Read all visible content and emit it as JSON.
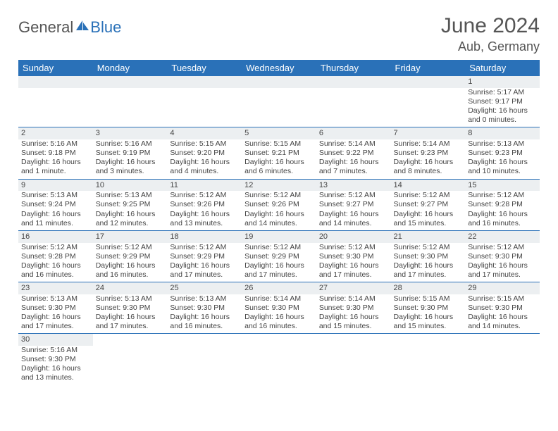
{
  "logo": {
    "part1": "General",
    "part2": "Blue"
  },
  "title": "June 2024",
  "location": "Aub, Germany",
  "headers": [
    "Sunday",
    "Monday",
    "Tuesday",
    "Wednesday",
    "Thursday",
    "Friday",
    "Saturday"
  ],
  "colors": {
    "brand": "#2a71b8",
    "header_text": "#ffffff",
    "grey_bg": "#eceff1",
    "text": "#444444"
  },
  "weeks": [
    [
      null,
      null,
      null,
      null,
      null,
      null,
      {
        "n": "1",
        "sr": "Sunrise: 5:17 AM",
        "ss": "Sunset: 9:17 PM",
        "d1": "Daylight: 16 hours",
        "d2": "and 0 minutes."
      }
    ],
    [
      {
        "n": "2",
        "sr": "Sunrise: 5:16 AM",
        "ss": "Sunset: 9:18 PM",
        "d1": "Daylight: 16 hours",
        "d2": "and 1 minute."
      },
      {
        "n": "3",
        "sr": "Sunrise: 5:16 AM",
        "ss": "Sunset: 9:19 PM",
        "d1": "Daylight: 16 hours",
        "d2": "and 3 minutes."
      },
      {
        "n": "4",
        "sr": "Sunrise: 5:15 AM",
        "ss": "Sunset: 9:20 PM",
        "d1": "Daylight: 16 hours",
        "d2": "and 4 minutes."
      },
      {
        "n": "5",
        "sr": "Sunrise: 5:15 AM",
        "ss": "Sunset: 9:21 PM",
        "d1": "Daylight: 16 hours",
        "d2": "and 6 minutes."
      },
      {
        "n": "6",
        "sr": "Sunrise: 5:14 AM",
        "ss": "Sunset: 9:22 PM",
        "d1": "Daylight: 16 hours",
        "d2": "and 7 minutes."
      },
      {
        "n": "7",
        "sr": "Sunrise: 5:14 AM",
        "ss": "Sunset: 9:23 PM",
        "d1": "Daylight: 16 hours",
        "d2": "and 8 minutes."
      },
      {
        "n": "8",
        "sr": "Sunrise: 5:13 AM",
        "ss": "Sunset: 9:23 PM",
        "d1": "Daylight: 16 hours",
        "d2": "and 10 minutes."
      }
    ],
    [
      {
        "n": "9",
        "sr": "Sunrise: 5:13 AM",
        "ss": "Sunset: 9:24 PM",
        "d1": "Daylight: 16 hours",
        "d2": "and 11 minutes."
      },
      {
        "n": "10",
        "sr": "Sunrise: 5:13 AM",
        "ss": "Sunset: 9:25 PM",
        "d1": "Daylight: 16 hours",
        "d2": "and 12 minutes."
      },
      {
        "n": "11",
        "sr": "Sunrise: 5:12 AM",
        "ss": "Sunset: 9:26 PM",
        "d1": "Daylight: 16 hours",
        "d2": "and 13 minutes."
      },
      {
        "n": "12",
        "sr": "Sunrise: 5:12 AM",
        "ss": "Sunset: 9:26 PM",
        "d1": "Daylight: 16 hours",
        "d2": "and 14 minutes."
      },
      {
        "n": "13",
        "sr": "Sunrise: 5:12 AM",
        "ss": "Sunset: 9:27 PM",
        "d1": "Daylight: 16 hours",
        "d2": "and 14 minutes."
      },
      {
        "n": "14",
        "sr": "Sunrise: 5:12 AM",
        "ss": "Sunset: 9:27 PM",
        "d1": "Daylight: 16 hours",
        "d2": "and 15 minutes."
      },
      {
        "n": "15",
        "sr": "Sunrise: 5:12 AM",
        "ss": "Sunset: 9:28 PM",
        "d1": "Daylight: 16 hours",
        "d2": "and 16 minutes."
      }
    ],
    [
      {
        "n": "16",
        "sr": "Sunrise: 5:12 AM",
        "ss": "Sunset: 9:28 PM",
        "d1": "Daylight: 16 hours",
        "d2": "and 16 minutes."
      },
      {
        "n": "17",
        "sr": "Sunrise: 5:12 AM",
        "ss": "Sunset: 9:29 PM",
        "d1": "Daylight: 16 hours",
        "d2": "and 16 minutes."
      },
      {
        "n": "18",
        "sr": "Sunrise: 5:12 AM",
        "ss": "Sunset: 9:29 PM",
        "d1": "Daylight: 16 hours",
        "d2": "and 17 minutes."
      },
      {
        "n": "19",
        "sr": "Sunrise: 5:12 AM",
        "ss": "Sunset: 9:29 PM",
        "d1": "Daylight: 16 hours",
        "d2": "and 17 minutes."
      },
      {
        "n": "20",
        "sr": "Sunrise: 5:12 AM",
        "ss": "Sunset: 9:30 PM",
        "d1": "Daylight: 16 hours",
        "d2": "and 17 minutes."
      },
      {
        "n": "21",
        "sr": "Sunrise: 5:12 AM",
        "ss": "Sunset: 9:30 PM",
        "d1": "Daylight: 16 hours",
        "d2": "and 17 minutes."
      },
      {
        "n": "22",
        "sr": "Sunrise: 5:12 AM",
        "ss": "Sunset: 9:30 PM",
        "d1": "Daylight: 16 hours",
        "d2": "and 17 minutes."
      }
    ],
    [
      {
        "n": "23",
        "sr": "Sunrise: 5:13 AM",
        "ss": "Sunset: 9:30 PM",
        "d1": "Daylight: 16 hours",
        "d2": "and 17 minutes."
      },
      {
        "n": "24",
        "sr": "Sunrise: 5:13 AM",
        "ss": "Sunset: 9:30 PM",
        "d1": "Daylight: 16 hours",
        "d2": "and 17 minutes."
      },
      {
        "n": "25",
        "sr": "Sunrise: 5:13 AM",
        "ss": "Sunset: 9:30 PM",
        "d1": "Daylight: 16 hours",
        "d2": "and 16 minutes."
      },
      {
        "n": "26",
        "sr": "Sunrise: 5:14 AM",
        "ss": "Sunset: 9:30 PM",
        "d1": "Daylight: 16 hours",
        "d2": "and 16 minutes."
      },
      {
        "n": "27",
        "sr": "Sunrise: 5:14 AM",
        "ss": "Sunset: 9:30 PM",
        "d1": "Daylight: 16 hours",
        "d2": "and 15 minutes."
      },
      {
        "n": "28",
        "sr": "Sunrise: 5:15 AM",
        "ss": "Sunset: 9:30 PM",
        "d1": "Daylight: 16 hours",
        "d2": "and 15 minutes."
      },
      {
        "n": "29",
        "sr": "Sunrise: 5:15 AM",
        "ss": "Sunset: 9:30 PM",
        "d1": "Daylight: 16 hours",
        "d2": "and 14 minutes."
      }
    ],
    [
      {
        "n": "30",
        "sr": "Sunrise: 5:16 AM",
        "ss": "Sunset: 9:30 PM",
        "d1": "Daylight: 16 hours",
        "d2": "and 13 minutes."
      },
      null,
      null,
      null,
      null,
      null,
      null
    ]
  ]
}
